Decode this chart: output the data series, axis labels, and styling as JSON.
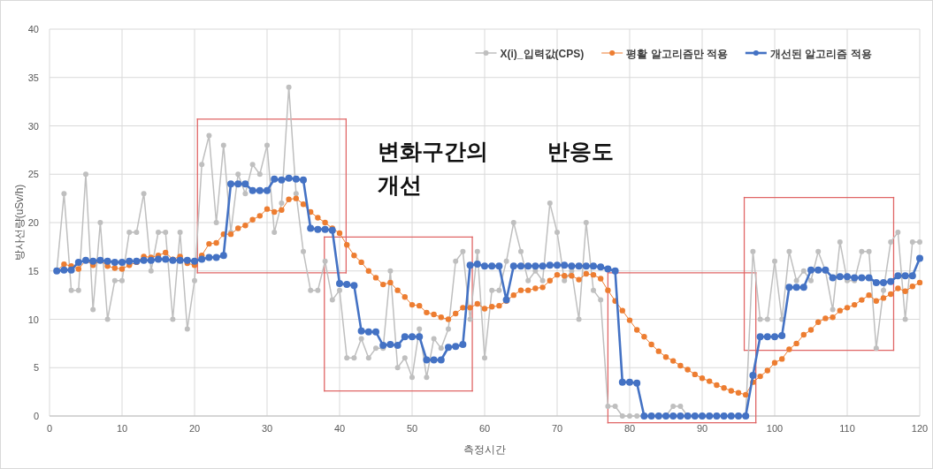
{
  "chart_data": {
    "type": "line",
    "xlabel": "측정시간",
    "ylabel": "방사선량(uSv/h)",
    "xlim": [
      0,
      120
    ],
    "ylim": [
      0,
      40
    ],
    "xticks": [
      0,
      10,
      20,
      30,
      40,
      50,
      60,
      70,
      80,
      90,
      100,
      110,
      120
    ],
    "yticks": [
      0,
      5,
      10,
      15,
      20,
      25,
      30,
      35,
      40
    ],
    "grid": true,
    "legend": "top right",
    "marker": "circle",
    "line_style": "solid",
    "annotations": [
      "변화구간의 반응도 개선"
    ],
    "x": [
      1,
      2,
      3,
      4,
      5,
      6,
      7,
      8,
      9,
      10,
      11,
      12,
      13,
      14,
      15,
      16,
      17,
      18,
      19,
      20,
      21,
      22,
      23,
      24,
      25,
      26,
      27,
      28,
      29,
      30,
      31,
      32,
      33,
      34,
      35,
      36,
      37,
      38,
      39,
      40,
      41,
      42,
      43,
      44,
      45,
      46,
      47,
      48,
      49,
      50,
      51,
      52,
      53,
      54,
      55,
      56,
      57,
      58,
      59,
      60,
      61,
      62,
      63,
      64,
      65,
      66,
      67,
      68,
      69,
      70,
      71,
      72,
      73,
      74,
      75,
      76,
      77,
      78,
      79,
      80,
      81,
      82,
      83,
      84,
      85,
      86,
      87,
      88,
      89,
      90,
      91,
      92,
      93,
      94,
      95,
      96,
      97,
      98,
      99,
      100,
      101,
      102,
      103,
      104,
      105,
      106,
      107,
      108,
      109,
      110,
      111,
      112,
      113,
      114,
      115,
      116,
      117,
      118,
      119,
      120
    ],
    "series": [
      {
        "name": "X(i)_입력값(CPS)",
        "color": "#bfbfbf",
        "values": [
          15,
          23,
          13,
          13,
          25,
          11,
          20,
          10,
          14,
          14,
          19,
          19,
          23,
          15,
          19,
          19,
          10,
          19,
          9,
          14,
          26,
          29,
          20,
          28,
          19,
          25,
          23,
          26,
          25,
          28,
          19,
          22,
          34,
          23,
          17,
          13,
          13,
          16,
          12,
          13,
          6,
          6,
          8,
          6,
          7,
          7,
          15,
          5,
          6,
          4,
          9,
          4,
          8,
          7,
          9,
          16,
          17,
          10,
          17,
          6,
          13,
          13,
          16,
          20,
          17,
          14,
          15,
          14,
          22,
          19,
          14,
          15,
          10,
          20,
          13,
          12,
          1,
          1,
          0,
          0,
          0,
          0,
          0,
          0,
          0,
          1,
          1,
          0,
          0,
          0,
          0,
          0,
          0,
          0,
          0,
          0,
          17,
          10,
          10,
          16,
          10,
          17,
          14,
          15,
          14,
          17,
          15,
          11,
          18,
          14,
          14,
          17,
          17,
          7,
          13,
          18,
          19,
          10,
          18,
          18
        ]
      },
      {
        "name": "평활 알고리즘만 적용",
        "color": "#ed7d31",
        "values": [
          15,
          15.7,
          15.5,
          15.2,
          16.1,
          15.6,
          16.1,
          15.5,
          15.3,
          15.2,
          15.6,
          15.9,
          16.5,
          16.4,
          16.6,
          16.9,
          16.2,
          16.5,
          15.8,
          15.6,
          16.6,
          17.8,
          17.9,
          18.8,
          18.8,
          19.4,
          19.7,
          20.3,
          20.7,
          21.4,
          21.1,
          21.3,
          22.4,
          22.5,
          21.9,
          21.1,
          20.5,
          20.0,
          19.4,
          18.9,
          17.7,
          16.6,
          15.9,
          15.0,
          14.3,
          13.6,
          13.8,
          13.0,
          12.3,
          11.5,
          11.4,
          10.7,
          10.5,
          10.2,
          10.0,
          10.6,
          11.2,
          11.2,
          11.6,
          11.1,
          11.3,
          11.4,
          11.9,
          12.5,
          13.0,
          13.0,
          13.2,
          13.3,
          14.0,
          14.6,
          14.5,
          14.5,
          14.1,
          14.7,
          14.6,
          14.2,
          13.0,
          11.9,
          10.9,
          9.9,
          8.9,
          8.2,
          7.4,
          6.7,
          6.1,
          5.7,
          5.2,
          4.8,
          4.3,
          3.9,
          3.6,
          3.2,
          2.9,
          2.6,
          2.4,
          2.2,
          3.5,
          4.1,
          4.7,
          5.5,
          5.9,
          6.9,
          7.5,
          8.4,
          8.9,
          9.7,
          10.1,
          10.2,
          10.9,
          11.2,
          11.5,
          12.0,
          12.5,
          11.9,
          12.2,
          12.6,
          13.2,
          12.9,
          13.4,
          13.8
        ]
      },
      {
        "name": "개선된 알고리즘 적용",
        "color": "#4472c4",
        "values": [
          15,
          15.1,
          15.1,
          15.9,
          16.1,
          16.0,
          16.1,
          16.0,
          15.9,
          15.9,
          16.0,
          16.0,
          16.1,
          16.1,
          16.2,
          16.2,
          16.1,
          16.1,
          16.1,
          16.0,
          16.2,
          16.4,
          16.4,
          16.6,
          24.0,
          24.0,
          24.0,
          23.3,
          23.3,
          23.3,
          24.5,
          24.4,
          24.6,
          24.5,
          24.4,
          19.4,
          19.3,
          19.3,
          19.2,
          13.7,
          13.6,
          13.5,
          8.8,
          8.7,
          8.7,
          7.3,
          7.4,
          7.3,
          8.2,
          8.2,
          8.2,
          5.8,
          5.8,
          5.8,
          7.1,
          7.2,
          7.4,
          15.6,
          15.7,
          15.5,
          15.5,
          15.5,
          12.0,
          15.5,
          15.5,
          15.5,
          15.5,
          15.5,
          15.6,
          15.6,
          15.6,
          15.5,
          15.5,
          15.5,
          15.5,
          15.4,
          15.2,
          15.0,
          3.5,
          3.5,
          3.4,
          0,
          0,
          0,
          0,
          0,
          0,
          0,
          0,
          0,
          0,
          0,
          0,
          0,
          0,
          0,
          4.2,
          8.2,
          8.2,
          8.2,
          8.3,
          13.3,
          13.3,
          13.3,
          15.1,
          15.1,
          15.1,
          14.3,
          14.4,
          14.4,
          14.3,
          14.3,
          14.3,
          13.8,
          13.8,
          13.9,
          14.5,
          14.5,
          14.5,
          16.3
        ]
      }
    ]
  }
}
